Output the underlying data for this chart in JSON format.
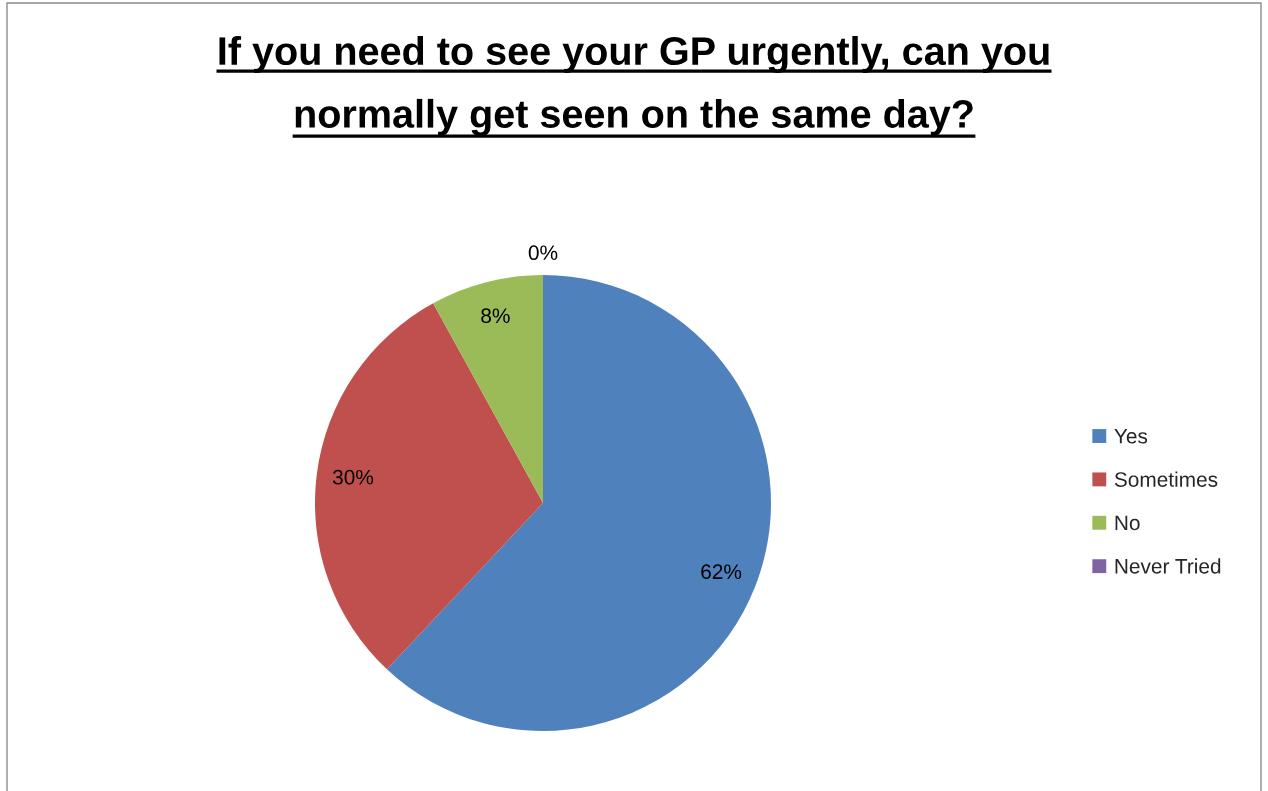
{
  "chart_data": {
    "type": "pie",
    "title": "If you need to see your GP urgently, can you normally get seen on the same day?",
    "categories": [
      "Yes",
      "Sometimes",
      "No",
      "Never Tried"
    ],
    "values": [
      62,
      30,
      8,
      0
    ],
    "colors": [
      "#4f81bd",
      "#c0504d",
      "#9bbb59",
      "#8064a2"
    ],
    "value_labels": [
      "62%",
      "30%",
      "8%",
      "0%"
    ],
    "legend": "right"
  }
}
